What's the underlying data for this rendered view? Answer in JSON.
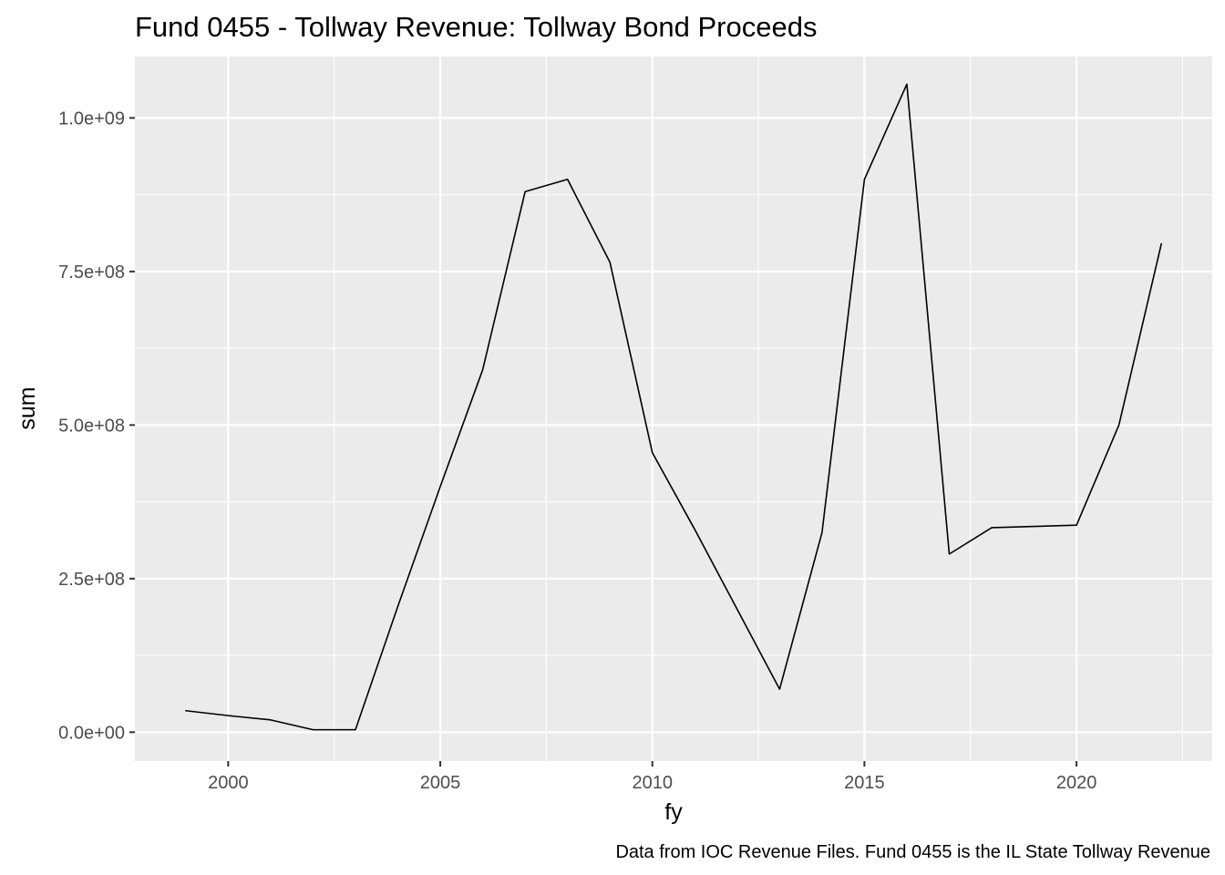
{
  "chart_data": {
    "type": "line",
    "title": "Fund 0455 - Tollway Revenue: Tollway Bond Proceeds",
    "xlabel": "fy",
    "ylabel": "sum",
    "caption": "Data from IOC Revenue Files. Fund 0455 is the IL State Tollway Revenue",
    "xlim": [
      1997.8,
      2023.2
    ],
    "ylim": [
      -47000000,
      1100000000
    ],
    "x_ticks": [
      2000,
      2005,
      2010,
      2015,
      2020
    ],
    "x_tick_labels": [
      "2000",
      "2005",
      "2010",
      "2015",
      "2020"
    ],
    "y_ticks": [
      0,
      250000000,
      500000000,
      750000000,
      1000000000
    ],
    "y_tick_labels": [
      "0.0e+00",
      "2.5e+08",
      "5.0e+08",
      "7.5e+08",
      "1.0e+09"
    ],
    "grid": true,
    "colors": {
      "panel": "#ebebeb",
      "grid": "#ffffff",
      "line": "#000000"
    },
    "series": [
      {
        "x": [
          1999,
          2000,
          2001,
          2002,
          2003,
          2004,
          2005,
          2006,
          2007,
          2008,
          2009,
          2010,
          2011,
          2012,
          2013,
          2014,
          2015,
          2016,
          2017,
          2018,
          2019,
          2020,
          2021,
          2022
        ],
        "values": [
          35000000,
          27000000,
          20000000,
          4000000,
          4000000,
          205000000,
          400000000,
          590000000,
          880000000,
          900000000,
          765000000,
          455000000,
          330000000,
          200000000,
          70000000,
          325000000,
          900000000,
          1055000000,
          290000000,
          333000000,
          335000000,
          337000000,
          500000000,
          795000000
        ]
      }
    ]
  }
}
